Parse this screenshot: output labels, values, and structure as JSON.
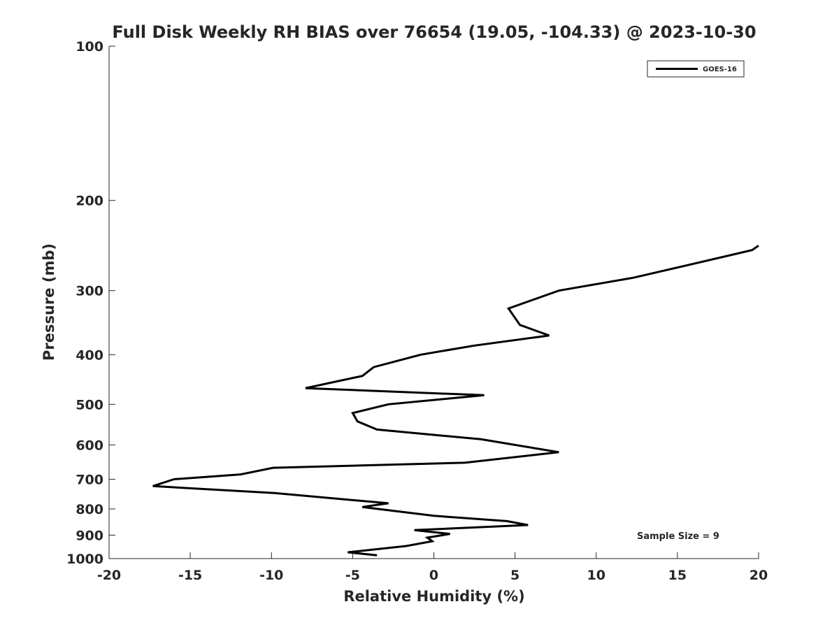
{
  "chart_data": {
    "type": "line",
    "title": "Full Disk Weekly RH BIAS over 76654 (19.05, -104.33) @ 2023-10-30",
    "xlabel": "Relative Humidity (%)",
    "ylabel": "Pressure (mb)",
    "xlim": [
      -20,
      20
    ],
    "ylim": [
      100,
      1000
    ],
    "y_scale": "log",
    "y_reversed": true,
    "grid": false,
    "xticks": [
      -20,
      -15,
      -10,
      -5,
      0,
      5,
      10,
      15,
      20
    ],
    "yticks": [
      100,
      200,
      300,
      400,
      500,
      600,
      700,
      800,
      900,
      1000
    ],
    "legend_position": "top-right",
    "annotation": "Sample Size = 9",
    "series": [
      {
        "name": "GOES-16",
        "color": "#000000",
        "points": [
          {
            "x": 20.0,
            "y": 245
          },
          {
            "x": 19.6,
            "y": 250
          },
          {
            "x": 16.2,
            "y": 265
          },
          {
            "x": 12.3,
            "y": 283
          },
          {
            "x": 7.7,
            "y": 300
          },
          {
            "x": 4.6,
            "y": 325
          },
          {
            "x": 5.3,
            "y": 350
          },
          {
            "x": 7.1,
            "y": 367
          },
          {
            "x": 2.5,
            "y": 384
          },
          {
            "x": -0.8,
            "y": 400
          },
          {
            "x": -3.7,
            "y": 423
          },
          {
            "x": -4.4,
            "y": 440
          },
          {
            "x": -7.9,
            "y": 465
          },
          {
            "x": 3.1,
            "y": 480
          },
          {
            "x": -2.8,
            "y": 500
          },
          {
            "x": -5.0,
            "y": 520
          },
          {
            "x": -4.7,
            "y": 540
          },
          {
            "x": -3.5,
            "y": 560
          },
          {
            "x": 2.9,
            "y": 585
          },
          {
            "x": 7.7,
            "y": 620
          },
          {
            "x": 1.9,
            "y": 650
          },
          {
            "x": -9.9,
            "y": 665
          },
          {
            "x": -11.9,
            "y": 685
          },
          {
            "x": -16.0,
            "y": 700
          },
          {
            "x": -17.3,
            "y": 722
          },
          {
            "x": -9.8,
            "y": 745
          },
          {
            "x": -2.8,
            "y": 780
          },
          {
            "x": -4.4,
            "y": 793
          },
          {
            "x": 0.0,
            "y": 825
          },
          {
            "x": 4.5,
            "y": 845
          },
          {
            "x": 5.8,
            "y": 860
          },
          {
            "x": -1.2,
            "y": 880
          },
          {
            "x": 1.0,
            "y": 895
          },
          {
            "x": -0.4,
            "y": 910
          },
          {
            "x": -0.1,
            "y": 925
          },
          {
            "x": -1.7,
            "y": 945
          },
          {
            "x": -5.3,
            "y": 972
          },
          {
            "x": -3.5,
            "y": 985
          }
        ]
      }
    ]
  }
}
